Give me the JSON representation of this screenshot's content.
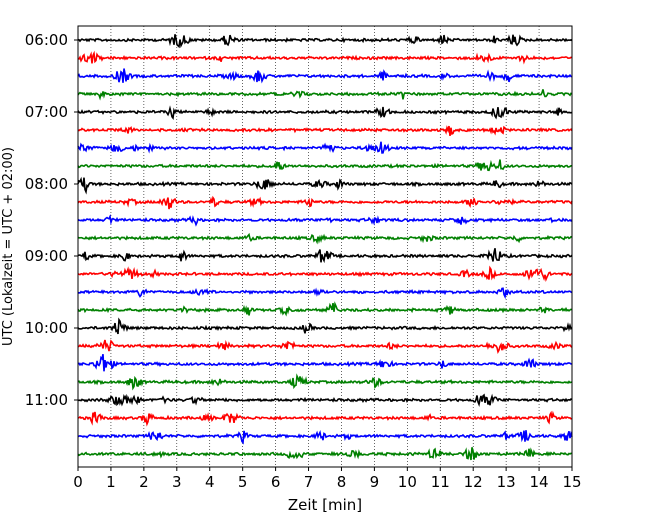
{
  "chart_data": {
    "type": "line",
    "title": "",
    "xlabel": "Zeit  [min]",
    "ylabel": "UTC (Lokalzeit = UTC + 02:00)",
    "xlim": [
      0,
      15
    ],
    "x_ticks": [
      "0",
      "1",
      "2",
      "3",
      "4",
      "5",
      "6",
      "7",
      "8",
      "9",
      "10",
      "11",
      "12",
      "13",
      "14",
      "15"
    ],
    "y_tick_labels": [
      "06:00",
      "07:00",
      "08:00",
      "09:00",
      "10:00",
      "11:00"
    ],
    "rows_per_hour": 4,
    "row_start_times": [
      "06:00",
      "06:15",
      "06:30",
      "06:45",
      "07:00",
      "07:15",
      "07:30",
      "07:45",
      "08:00",
      "08:15",
      "08:30",
      "08:45",
      "09:00",
      "09:15",
      "09:30",
      "09:45",
      "10:00",
      "10:15",
      "10:30",
      "10:45",
      "11:00",
      "11:15",
      "11:30",
      "11:45"
    ],
    "trace_color_cycle": [
      "#000000",
      "#ff0000",
      "#0000ff",
      "#008000"
    ],
    "grid": "vertical dotted lines at each minute",
    "legend": "none"
  }
}
